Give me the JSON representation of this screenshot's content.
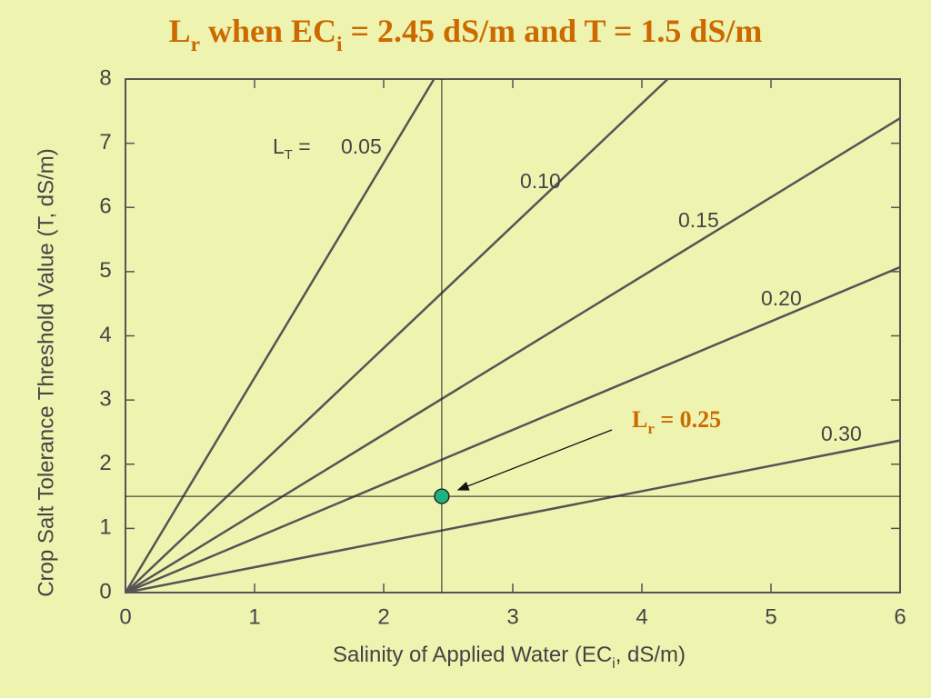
{
  "chart_data": {
    "type": "line",
    "title": [
      "L",
      "r",
      " when EC",
      "i",
      " = 2.45 dS/m and T = 1.5 dS/m"
    ],
    "x_label": [
      "Salinity of Applied Water (EC",
      "i",
      ", dS/m)"
    ],
    "y_label": "Crop Salt Tolerance Threshold Value  (T, dS/m)",
    "xlim": [
      0,
      6
    ],
    "ylim": [
      0,
      8
    ],
    "xticks": [
      0,
      1,
      2,
      3,
      4,
      5,
      6
    ],
    "yticks": [
      0,
      1,
      2,
      3,
      4,
      5,
      6,
      7,
      8
    ],
    "legend_prefix": [
      "L",
      "T",
      " = "
    ],
    "series": [
      {
        "name": "0.05",
        "color": "#555555",
        "x": [
          0,
          2.39
        ],
        "values": [
          0,
          8
        ]
      },
      {
        "name": "0.10",
        "color": "#555555",
        "x": [
          0,
          4.2
        ],
        "values": [
          0,
          8
        ]
      },
      {
        "name": "0.15",
        "color": "#555555",
        "x": [
          0,
          6
        ],
        "values": [
          0,
          7.39
        ]
      },
      {
        "name": "0.20",
        "color": "#555555",
        "x": [
          0,
          6
        ],
        "values": [
          0,
          5.07
        ]
      },
      {
        "name": "0.30",
        "color": "#555555",
        "x": [
          0,
          6
        ],
        "values": [
          0,
          2.37
        ]
      }
    ],
    "marker": {
      "x": 2.45,
      "y": 1.5,
      "color": "#1db37f"
    },
    "annotation": [
      "L",
      "r",
      " = 0.25"
    ]
  }
}
